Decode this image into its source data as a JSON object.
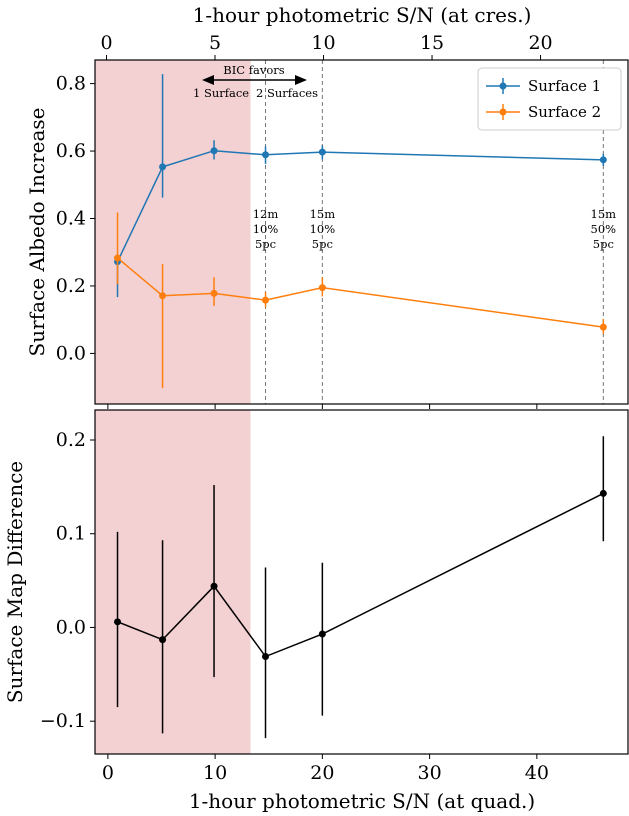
{
  "chart_data": [
    {
      "type": "line",
      "title": "",
      "top_xlabel": "1-hour photometric S/N (at cres.)",
      "top_xticks": [
        0,
        5,
        10,
        15,
        20
      ],
      "top_xlim": [
        -0.53,
        24.03
      ],
      "xlim": [
        -1.2,
        48.5
      ],
      "ylabel": "Surface Albedo Increase",
      "ylim": [
        -0.15,
        0.87
      ],
      "yticks": [
        0.0,
        0.2,
        0.4,
        0.6,
        0.8
      ],
      "ytick_labels": [
        "0.0",
        "0.2",
        "0.4",
        "0.6",
        "0.8"
      ],
      "x": [
        0.9,
        5.1,
        9.9,
        14.7,
        20.0,
        46.2
      ],
      "series": [
        {
          "name": "Surface 1",
          "color": "#1f77b4",
          "values": [
            0.272,
            0.553,
            0.601,
            0.589,
            0.597,
            0.574
          ],
          "lower": [
            0.167,
            0.462,
            0.575,
            0.562,
            0.575,
            0.556
          ],
          "upper": [
            0.283,
            0.828,
            0.632,
            0.614,
            0.617,
            0.592
          ]
        },
        {
          "name": "Surface 2",
          "color": "#ff7f0e",
          "values": [
            0.283,
            0.171,
            0.178,
            0.158,
            0.195,
            0.078
          ],
          "lower": [
            0.205,
            -0.103,
            0.141,
            0.137,
            0.169,
            0.058
          ],
          "upper": [
            0.418,
            0.265,
            0.226,
            0.182,
            0.226,
            0.102
          ]
        }
      ],
      "shaded_region": {
        "x": [
          -1.2,
          13.3
        ],
        "color": "#f3d0d2"
      },
      "vlines": [
        {
          "x": 14.7,
          "label": [
            "12m",
            "10%",
            "5pc"
          ]
        },
        {
          "x": 20.0,
          "label": [
            "15m",
            "10%",
            "5pc"
          ]
        },
        {
          "x": 46.2,
          "label": [
            "15m",
            "50%",
            "5pc"
          ]
        }
      ],
      "bic_annotation": {
        "title": "BIC favors",
        "left": "1 Surface",
        "right": "2 Surfaces"
      },
      "legend": "top-right"
    },
    {
      "type": "line",
      "title": "",
      "xlabel": "1-hour photometric S/N (at quad.)",
      "xlim": [
        -1.2,
        48.5
      ],
      "xticks": [
        0,
        10,
        20,
        30,
        40
      ],
      "ylabel": "Surface Map Difference",
      "ylim": [
        -0.135,
        0.232
      ],
      "yticks": [
        -0.1,
        0.0,
        0.1,
        0.2
      ],
      "ytick_labels": [
        "−0.1",
        "0.0",
        "0.1",
        "0.2"
      ],
      "x": [
        0.9,
        5.1,
        9.9,
        14.7,
        20.0,
        46.2
      ],
      "series": [
        {
          "color": "#000000",
          "values": [
            0.006,
            -0.013,
            0.044,
            -0.031,
            -0.007,
            0.143
          ],
          "lower": [
            -0.085,
            -0.113,
            -0.053,
            -0.118,
            -0.094,
            0.092
          ],
          "upper": [
            0.102,
            0.093,
            0.152,
            0.064,
            0.069,
            0.204
          ]
        }
      ],
      "shaded_region": {
        "x": [
          -1.2,
          13.3
        ],
        "color": "#f3d0d2"
      }
    }
  ]
}
